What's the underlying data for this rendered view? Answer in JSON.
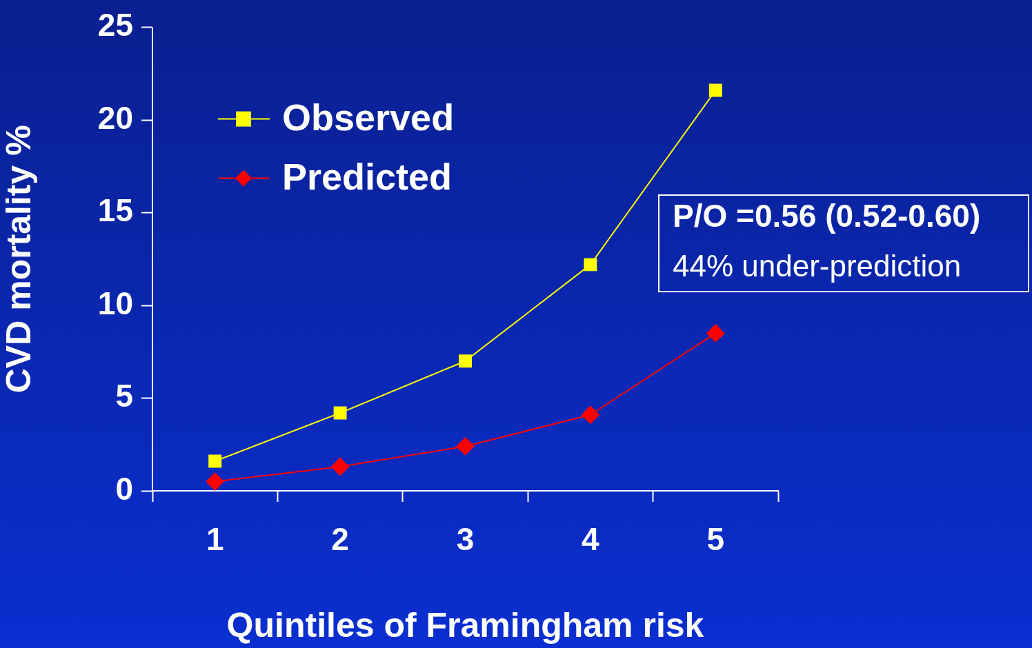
{
  "chart_data": {
    "type": "line",
    "xlabel": "Quintiles of Framingham risk",
    "ylabel": "CVD mortality %",
    "categories": [
      "1",
      "2",
      "3",
      "4",
      "5"
    ],
    "series": [
      {
        "name": "Observed",
        "color": "#ffff00",
        "marker": "square",
        "values": [
          1.6,
          4.2,
          7.0,
          12.2,
          21.6
        ]
      },
      {
        "name": "Predicted",
        "color": "#ff0000",
        "marker": "diamond",
        "values": [
          0.5,
          1.3,
          2.4,
          4.1,
          8.5
        ]
      }
    ],
    "ylim": [
      0,
      25
    ],
    "yticks": [
      0,
      5,
      10,
      15,
      20,
      25
    ],
    "grid": false,
    "legend": "top left",
    "line_style": "solid",
    "annotations": [
      "P/O =0.56 (0.52-0.60)",
      "44% under-prediction"
    ]
  }
}
